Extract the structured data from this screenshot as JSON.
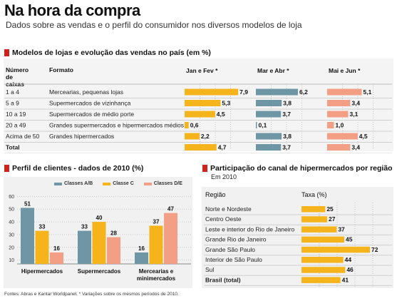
{
  "header": {
    "title": "Na hora da compra",
    "subtitle": "Dados sobre as vendas e o perfil do consumidor nos diversos modelos de loja"
  },
  "section1": {
    "title": "Modelos de lojas e evolução das vendas no país (em %)",
    "col_caixas": "Número de caixas",
    "col_caixas_l1": "Número",
    "col_caixas_l2": "de",
    "col_caixas_l3": "caixas",
    "col_formato": "Formato",
    "periods": [
      "Jan e Fev *",
      "Mar e Abr *",
      "Mai e Jun *"
    ]
  },
  "section2": {
    "title": "Perfil de clientes - dados de 2010 (%)"
  },
  "section3": {
    "title": "Participação do canal de hipermercados por região",
    "subtitle": "Em 2010",
    "col_regiao": "Região",
    "col_taxa": "Taxa (%)"
  },
  "footnote": "Fontes: Abras e Kantar Worldpanel. * Variações sobre os mesmos períodos de 2010.",
  "colors": {
    "accent_red": "#d0231e",
    "jan_fev": "#f5b41c",
    "mar_abr": "#6f96a5",
    "mai_jun": "#f39f86",
    "classe_ab": "#6f96a5",
    "classe_c": "#f5b41c",
    "classe_de": "#f39f86"
  },
  "chart_data": [
    {
      "type": "bar",
      "title": "Modelos de lojas e evolução das vendas no país (em %)",
      "rows": [
        {
          "caixas": "1 a 4",
          "formato": "Mercearias, pequenas lojas"
        },
        {
          "caixas": "5 a 9",
          "formato": "Supermercados de vizinhança"
        },
        {
          "caixas": "10 a 19",
          "formato": "Supermercados de médio porte"
        },
        {
          "caixas": "20 a 49",
          "formato": "Grandes supermercados e hipermercados médios"
        },
        {
          "caixas": "Acima de 50",
          "formato": "Grandes hipermercados"
        },
        {
          "caixas": "Total",
          "formato": ""
        }
      ],
      "series": [
        {
          "name": "Jan e Fev *",
          "values": [
            7.9,
            5.3,
            4.5,
            0.6,
            2.2,
            4.7
          ],
          "labels": [
            "7,9",
            "5,3",
            "4,5",
            "0,6",
            "2,2",
            "4,7"
          ]
        },
        {
          "name": "Mar e Abr *",
          "values": [
            6.2,
            3.8,
            3.7,
            0.1,
            3.8,
            3.7
          ],
          "labels": [
            "6,2",
            "3,8",
            "3,7",
            "0,1",
            "3,8",
            "3,7"
          ]
        },
        {
          "name": "Mai e Jun *",
          "values": [
            5.1,
            3.4,
            3.1,
            1.0,
            4.5,
            3.4
          ],
          "labels": [
            "5,1",
            "3,4",
            "3,1",
            "1,0",
            "4,5",
            "3,4"
          ]
        }
      ],
      "xlim": [
        0,
        8
      ]
    },
    {
      "type": "bar",
      "title": "Perfil de clientes - dados de 2010 (%)",
      "categories": [
        "Hipermercados",
        "Supermercados",
        "Mercearias e minimercados"
      ],
      "category_lines": [
        [
          "Hipermercados"
        ],
        [
          "Supermercados"
        ],
        [
          "Mercearias e",
          "minimercados"
        ]
      ],
      "series": [
        {
          "name": "Classes A/B",
          "values": [
            51,
            33,
            16
          ]
        },
        {
          "name": "Classe C",
          "values": [
            33,
            40,
            37
          ]
        },
        {
          "name": "Classes D/E",
          "values": [
            16,
            28,
            47
          ]
        }
      ],
      "yticks": [
        10,
        20,
        30,
        40,
        50,
        60
      ],
      "ylim": [
        7,
        63
      ],
      "legend": "top"
    },
    {
      "type": "bar",
      "title": "Participação do canal de hipermercados por região",
      "subtitle": "Em 2010",
      "categories": [
        "Norte e Nordeste",
        "Centro Oeste",
        "Leste e interior do Rio de Janeiro",
        "Grande Rio de Janeiro",
        "Grande São Paulo",
        "Interior de São Paulo",
        "Sul",
        "Brasil (total)"
      ],
      "values": [
        25,
        27,
        37,
        45,
        72,
        44,
        46,
        41
      ],
      "xlim": [
        0,
        75
      ]
    }
  ]
}
